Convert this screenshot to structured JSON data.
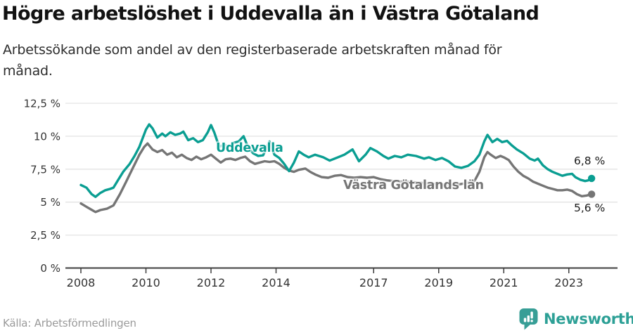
{
  "header": {
    "title": "Högre arbetslöshet i Uddevalla än i Västra Götaland",
    "subtitle_line1": "Arbetssökande som andel av den registerbaserade arbetskraften månad för",
    "subtitle_line2": "månad."
  },
  "chart_data": {
    "type": "line",
    "title": "Högre arbetslöshet i Uddevalla än i Västra Götaland",
    "subtitle": "Arbetssökande som andel av den registerbaserade arbetskraften månad för månad.",
    "unit": "%",
    "grid": "horizontal",
    "legend_position": "inline-labels",
    "y_axis": {
      "range": [
        0,
        12.5
      ],
      "ticks": [
        {
          "value": 0,
          "label": "0 %"
        },
        {
          "value": 2.5,
          "label": "2,5 %"
        },
        {
          "value": 5,
          "label": "5 %"
        },
        {
          "value": 7.5,
          "label": "7,5 %"
        },
        {
          "value": 10,
          "label": "10 %"
        },
        {
          "value": 12.5,
          "label": "12,5 %"
        }
      ]
    },
    "x_axis": {
      "range_years": [
        2007.5,
        2024.5
      ],
      "ticks": [
        {
          "value": 2008,
          "label": "2008"
        },
        {
          "value": 2010,
          "label": "2010"
        },
        {
          "value": 2012,
          "label": "2012"
        },
        {
          "value": 2014,
          "label": "2014"
        },
        {
          "value": 2017,
          "label": "2017"
        },
        {
          "value": 2019,
          "label": "2019"
        },
        {
          "value": 2021,
          "label": "2021"
        },
        {
          "value": 2023,
          "label": "2023"
        }
      ]
    },
    "series": [
      {
        "name": "Uddevalla",
        "color": "#0a9e92",
        "end_label": "6,8 %",
        "end_value": 6.8,
        "points": [
          [
            2008.0,
            6.3
          ],
          [
            2008.17,
            6.1
          ],
          [
            2008.33,
            5.6
          ],
          [
            2008.45,
            5.4
          ],
          [
            2008.6,
            5.7
          ],
          [
            2008.75,
            5.9
          ],
          [
            2008.9,
            6.0
          ],
          [
            2009.0,
            6.1
          ],
          [
            2009.15,
            6.7
          ],
          [
            2009.3,
            7.3
          ],
          [
            2009.5,
            7.9
          ],
          [
            2009.65,
            8.5
          ],
          [
            2009.8,
            9.2
          ],
          [
            2010.0,
            10.5
          ],
          [
            2010.1,
            10.9
          ],
          [
            2010.2,
            10.6
          ],
          [
            2010.35,
            9.9
          ],
          [
            2010.5,
            10.2
          ],
          [
            2010.6,
            10.0
          ],
          [
            2010.75,
            10.3
          ],
          [
            2010.9,
            10.1
          ],
          [
            2011.05,
            10.2
          ],
          [
            2011.15,
            10.35
          ],
          [
            2011.3,
            9.7
          ],
          [
            2011.45,
            9.85
          ],
          [
            2011.6,
            9.55
          ],
          [
            2011.75,
            9.7
          ],
          [
            2011.9,
            10.3
          ],
          [
            2012.0,
            10.85
          ],
          [
            2012.1,
            10.3
          ],
          [
            2012.25,
            9.2
          ],
          [
            2012.4,
            9.35
          ],
          [
            2012.55,
            9.2
          ],
          [
            2012.7,
            9.5
          ],
          [
            2012.85,
            9.6
          ],
          [
            2013.0,
            10.0
          ],
          [
            2013.15,
            9.1
          ],
          [
            2013.3,
            8.7
          ],
          [
            2013.45,
            8.5
          ],
          [
            2013.6,
            8.55
          ],
          [
            2013.8,
            9.6
          ],
          [
            2013.95,
            8.6
          ],
          [
            2014.1,
            8.35
          ],
          [
            2014.25,
            7.9
          ],
          [
            2014.4,
            7.35
          ],
          [
            2014.55,
            8.0
          ],
          [
            2014.7,
            8.85
          ],
          [
            2014.85,
            8.6
          ],
          [
            2015.0,
            8.4
          ],
          [
            2015.2,
            8.6
          ],
          [
            2015.45,
            8.4
          ],
          [
            2015.65,
            8.15
          ],
          [
            2015.9,
            8.4
          ],
          [
            2016.1,
            8.6
          ],
          [
            2016.35,
            9.0
          ],
          [
            2016.55,
            8.1
          ],
          [
            2016.75,
            8.6
          ],
          [
            2016.9,
            9.1
          ],
          [
            2017.1,
            8.85
          ],
          [
            2017.3,
            8.5
          ],
          [
            2017.45,
            8.3
          ],
          [
            2017.65,
            8.5
          ],
          [
            2017.85,
            8.4
          ],
          [
            2018.05,
            8.6
          ],
          [
            2018.3,
            8.5
          ],
          [
            2018.55,
            8.3
          ],
          [
            2018.7,
            8.4
          ],
          [
            2018.9,
            8.2
          ],
          [
            2019.1,
            8.35
          ],
          [
            2019.3,
            8.1
          ],
          [
            2019.5,
            7.7
          ],
          [
            2019.7,
            7.6
          ],
          [
            2019.9,
            7.75
          ],
          [
            2020.1,
            8.1
          ],
          [
            2020.25,
            8.6
          ],
          [
            2020.4,
            9.6
          ],
          [
            2020.5,
            10.1
          ],
          [
            2020.65,
            9.55
          ],
          [
            2020.8,
            9.8
          ],
          [
            2020.95,
            9.55
          ],
          [
            2021.1,
            9.65
          ],
          [
            2021.25,
            9.3
          ],
          [
            2021.4,
            9.0
          ],
          [
            2021.6,
            8.7
          ],
          [
            2021.8,
            8.3
          ],
          [
            2021.95,
            8.15
          ],
          [
            2022.05,
            8.3
          ],
          [
            2022.2,
            7.8
          ],
          [
            2022.35,
            7.5
          ],
          [
            2022.5,
            7.3
          ],
          [
            2022.65,
            7.15
          ],
          [
            2022.8,
            7.0
          ],
          [
            2022.95,
            7.1
          ],
          [
            2023.1,
            7.15
          ],
          [
            2023.2,
            6.9
          ],
          [
            2023.35,
            6.7
          ],
          [
            2023.5,
            6.6
          ],
          [
            2023.6,
            6.65
          ],
          [
            2023.7,
            6.8
          ]
        ]
      },
      {
        "name": "Västra Götalands län",
        "color": "#757575",
        "end_label": "5,6 %",
        "end_value": 5.6,
        "points": [
          [
            2008.0,
            4.9
          ],
          [
            2008.2,
            4.6
          ],
          [
            2008.45,
            4.25
          ],
          [
            2008.6,
            4.4
          ],
          [
            2008.8,
            4.5
          ],
          [
            2009.0,
            4.75
          ],
          [
            2009.2,
            5.6
          ],
          [
            2009.4,
            6.6
          ],
          [
            2009.6,
            7.6
          ],
          [
            2009.8,
            8.6
          ],
          [
            2009.95,
            9.2
          ],
          [
            2010.05,
            9.45
          ],
          [
            2010.2,
            9.0
          ],
          [
            2010.35,
            8.8
          ],
          [
            2010.5,
            8.95
          ],
          [
            2010.65,
            8.6
          ],
          [
            2010.8,
            8.75
          ],
          [
            2010.95,
            8.4
          ],
          [
            2011.1,
            8.6
          ],
          [
            2011.25,
            8.35
          ],
          [
            2011.4,
            8.2
          ],
          [
            2011.55,
            8.45
          ],
          [
            2011.7,
            8.25
          ],
          [
            2011.85,
            8.4
          ],
          [
            2012.0,
            8.6
          ],
          [
            2012.15,
            8.3
          ],
          [
            2012.3,
            8.0
          ],
          [
            2012.45,
            8.25
          ],
          [
            2012.6,
            8.3
          ],
          [
            2012.75,
            8.2
          ],
          [
            2012.9,
            8.35
          ],
          [
            2013.05,
            8.45
          ],
          [
            2013.2,
            8.1
          ],
          [
            2013.35,
            7.9
          ],
          [
            2013.5,
            8.0
          ],
          [
            2013.65,
            8.1
          ],
          [
            2013.8,
            8.05
          ],
          [
            2013.95,
            8.1
          ],
          [
            2014.1,
            7.9
          ],
          [
            2014.25,
            7.6
          ],
          [
            2014.4,
            7.4
          ],
          [
            2014.55,
            7.3
          ],
          [
            2014.7,
            7.45
          ],
          [
            2014.9,
            7.55
          ],
          [
            2015.05,
            7.3
          ],
          [
            2015.2,
            7.1
          ],
          [
            2015.4,
            6.9
          ],
          [
            2015.6,
            6.85
          ],
          [
            2015.8,
            7.0
          ],
          [
            2016.0,
            7.05
          ],
          [
            2016.2,
            6.9
          ],
          [
            2016.4,
            6.85
          ],
          [
            2016.6,
            6.9
          ],
          [
            2016.8,
            6.85
          ],
          [
            2017.0,
            6.9
          ],
          [
            2017.2,
            6.75
          ],
          [
            2017.4,
            6.65
          ],
          [
            2017.6,
            6.6
          ],
          [
            2017.8,
            6.55
          ],
          [
            2018.0,
            6.55
          ],
          [
            2018.25,
            6.5
          ],
          [
            2018.5,
            6.45
          ],
          [
            2018.75,
            6.4
          ],
          [
            2019.0,
            6.35
          ],
          [
            2019.25,
            6.3
          ],
          [
            2019.5,
            6.3
          ],
          [
            2019.75,
            6.4
          ],
          [
            2019.95,
            6.5
          ],
          [
            2020.1,
            6.6
          ],
          [
            2020.25,
            7.3
          ],
          [
            2020.4,
            8.4
          ],
          [
            2020.5,
            8.8
          ],
          [
            2020.6,
            8.6
          ],
          [
            2020.75,
            8.35
          ],
          [
            2020.9,
            8.5
          ],
          [
            2021.0,
            8.4
          ],
          [
            2021.15,
            8.2
          ],
          [
            2021.3,
            7.7
          ],
          [
            2021.45,
            7.3
          ],
          [
            2021.6,
            7.0
          ],
          [
            2021.75,
            6.8
          ],
          [
            2021.9,
            6.55
          ],
          [
            2022.05,
            6.4
          ],
          [
            2022.2,
            6.25
          ],
          [
            2022.35,
            6.1
          ],
          [
            2022.5,
            6.0
          ],
          [
            2022.65,
            5.9
          ],
          [
            2022.8,
            5.9
          ],
          [
            2022.95,
            5.95
          ],
          [
            2023.1,
            5.85
          ],
          [
            2023.25,
            5.6
          ],
          [
            2023.4,
            5.45
          ],
          [
            2023.55,
            5.5
          ],
          [
            2023.7,
            5.6
          ]
        ]
      }
    ]
  },
  "footer": {
    "source": "Källa: Arbetsförmedlingen",
    "brand": "Newsworthy",
    "brand_color": "#2da096"
  }
}
